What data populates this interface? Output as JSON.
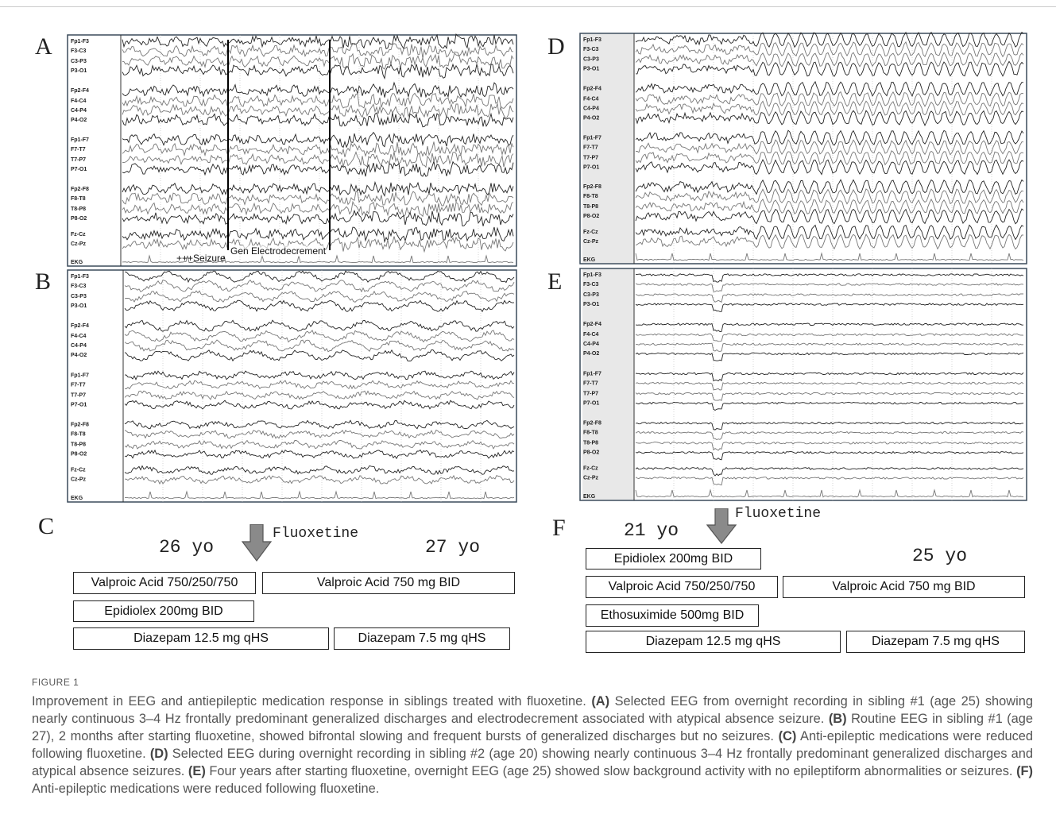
{
  "panels": [
    {
      "label": "A",
      "channels": [
        "Fp1-F3",
        "F3-C3",
        "C3-P3",
        "P3-O1",
        "Fp2-F4",
        "F4-C4",
        "C4-P4",
        "P4-O2",
        "Fp1-F7",
        "F7-T7",
        "T7-P7",
        "P7-O1",
        "Fp2-F8",
        "F8-T8",
        "T8-P8",
        "P8-O2",
        "Fz-Cz",
        "Cz-Pz",
        "EKG"
      ],
      "annotations": [
        "+++Seizure",
        "Gen Electrodecrement"
      ]
    },
    {
      "label": "B",
      "channels": [
        "Fp1-F3",
        "F3-C3",
        "C3-P3",
        "P3-O1",
        "Fp2-F4",
        "F4-C4",
        "C4-P4",
        "P4-O2",
        "Fp1-F7",
        "F7-T7",
        "T7-P7",
        "P7-O1",
        "Fp2-F8",
        "F8-T8",
        "T8-P8",
        "P8-O2",
        "Fz-Cz",
        "Cz-Pz",
        "EKG"
      ]
    },
    {
      "label": "D",
      "channels": [
        "Fp1-F3",
        "F3-C3",
        "C3-P3",
        "P3-O1",
        "Fp2-F4",
        "F4-C4",
        "C4-P4",
        "P4-O2",
        "Fp1-F7",
        "F7-T7",
        "T7-P7",
        "P7-O1",
        "Fp2-F8",
        "F8-T8",
        "T8-P8",
        "P8-O2",
        "Fz-Cz",
        "Cz-Pz",
        "EKG"
      ]
    },
    {
      "label": "E",
      "channels": [
        "Fp1-F3",
        "F3-C3",
        "C3-P3",
        "P3-O1",
        "Fp2-F4",
        "F4-C4",
        "C4-P4",
        "P4-O2",
        "Fp1-F7",
        "F7-T7",
        "T7-P7",
        "P7-O1",
        "Fp2-F8",
        "F8-T8",
        "T8-P8",
        "P8-O2",
        "Fz-Cz",
        "Cz-Pz",
        "EKG"
      ]
    }
  ],
  "timeline_c": {
    "label": "C",
    "age_before": "26 yo",
    "drug": "Fluoxetine",
    "age_after": "27 yo",
    "boxes": [
      "Valproic Acid 750/250/750",
      "Valproic Acid 750 mg BID",
      "Epidiolex 200mg BID",
      "Diazepam 12.5 mg qHS",
      "Diazepam 7.5 mg qHS"
    ]
  },
  "timeline_f": {
    "label": "F",
    "age_before": "21 yo",
    "drug": "Fluoxetine",
    "age_after": "25 yo",
    "boxes": [
      "Epidiolex 200mg BID",
      "Valproic Acid 750/250/750",
      "Valproic Acid 750 mg BID",
      "Ethosuximide 500mg BID",
      "Diazepam 12.5 mg qHS",
      "Diazepam 7.5 mg qHS"
    ]
  },
  "caption": {
    "figure": "FIGURE 1",
    "parts": [
      "Improvement in EEG and antiepileptic medication response in siblings treated with fluoxetine. ",
      "(A)",
      " Selected EEG from overnight recording in sibling #1 (age 25) showing nearly continuous 3–4 Hz frontally predominant generalized discharges and electrodecrement associated with atypical absence seizure. ",
      "(B)",
      " Routine EEG in sibling #1 (age 27), 2 months after starting fluoxetine, showed bifrontal slowing and frequent bursts of generalized discharges but no seizures. ",
      "(C)",
      " Anti-epileptic medications were reduced following fluoxetine. ",
      "(D)",
      " Selected EEG during overnight recording in sibling #2 (age 20) showing nearly continuous 3–4 Hz frontally predominant generalized discharges and atypical absence seizures. ",
      "(E)",
      " Four years after starting fluoxetine, overnight EEG (age 25) showed slow background activity with no epileptiform abnormalities or seizures. ",
      "(F)",
      " Anti-epileptic medications were reduced following fluoxetine."
    ]
  }
}
